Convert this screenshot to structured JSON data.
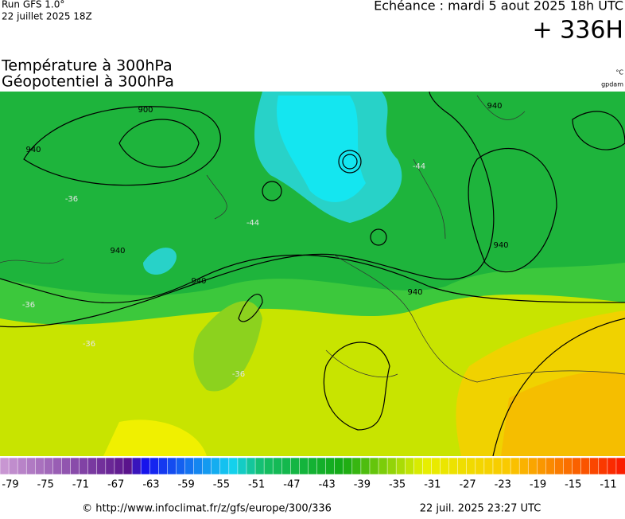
{
  "header": {
    "run": "Run GFS 1.0°",
    "run_date": "22 juillet 2025 18Z",
    "valid": "Echéance : mardi 5 aout 2025 18h UTC",
    "lead": "+ 336H",
    "title_1": "Température à 300hPa",
    "title_2": "Géopotentiel à 300hPa",
    "unit_temp": "°C",
    "unit_geo": "gpdam"
  },
  "map": {
    "contour_labels": [
      "900",
      "940",
      "940",
      "940",
      "940",
      "940",
      "940",
      "-44",
      "-44",
      "-36",
      "-36",
      "-36",
      "-36"
    ]
  },
  "scale": {
    "labels": [
      -79,
      -75,
      -71,
      -67,
      -63,
      -59,
      -55,
      -51,
      -47,
      -43,
      -39,
      -35,
      -31,
      -27,
      -23,
      -19,
      -15,
      -11
    ]
  },
  "footer": {
    "url": "© http://www.infoclimat.fr/z/gfs/europe/300/336",
    "generated": "22 juil. 2025 23:27 UTC"
  }
}
